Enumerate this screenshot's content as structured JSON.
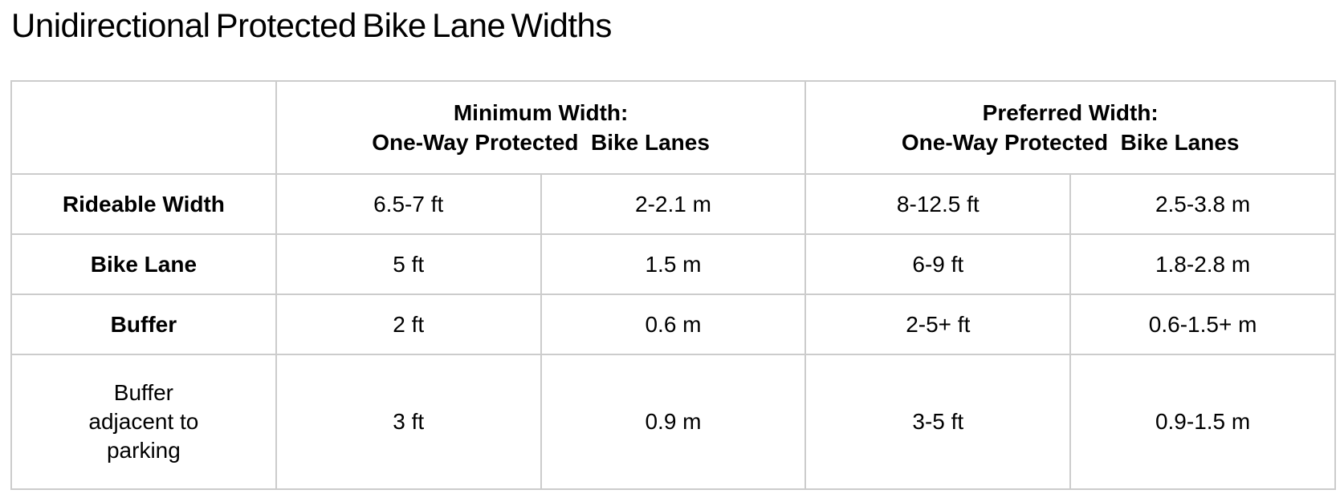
{
  "title": "Unidirectional Protected Bike Lane Widths",
  "table": {
    "headers": [
      {
        "line1": "Minimum Width:",
        "line2": "One-Way Protected  Bike Lanes"
      },
      {
        "line1": "Preferred Width:",
        "line2": "One-Way Protected  Bike Lanes"
      }
    ],
    "rows": [
      {
        "label": "Rideable Width",
        "values": [
          "6.5-7 ft",
          "2-2.1 m",
          "8-12.5 ft",
          "2.5-3.8 m"
        ]
      },
      {
        "label": "Bike Lane",
        "values": [
          "5 ft",
          "1.5 m",
          "6-9 ft",
          "1.8-2.8 m"
        ]
      },
      {
        "label": "Buffer",
        "values": [
          "2 ft",
          "0.6 m",
          "2-5+ ft",
          "0.6-1.5+ m"
        ]
      },
      {
        "label": "Buffer\nadjacent to\nparking",
        "values": [
          "3 ft",
          "0.9 m",
          "3-5 ft",
          "0.9-1.5 m"
        ]
      }
    ]
  },
  "colors": {
    "border": "#cccccc",
    "text": "#000000",
    "background": "#ffffff"
  },
  "chart_data": {
    "type": "table",
    "title": "Unidirectional Protected Bike Lane Widths",
    "column_headers": [
      {
        "label": "Minimum Width: One-Way Protected Bike Lanes",
        "span": 2
      },
      {
        "label": "Preferred Width: One-Way Protected Bike Lanes",
        "span": 2
      }
    ],
    "rows": [
      [
        "Rideable Width",
        "6.5-7 ft",
        "2-2.1 m",
        "8-12.5 ft",
        "2.5-3.8 m"
      ],
      [
        "Bike Lane",
        "5 ft",
        "1.5 m",
        "6-9 ft",
        "1.8-2.8 m"
      ],
      [
        "Buffer",
        "2 ft",
        "0.6 m",
        "2-5+ ft",
        "0.6-1.5+ m"
      ],
      [
        "Buffer adjacent to parking",
        "3 ft",
        "0.9 m",
        "3-5 ft",
        "0.9-1.5 m"
      ]
    ]
  }
}
